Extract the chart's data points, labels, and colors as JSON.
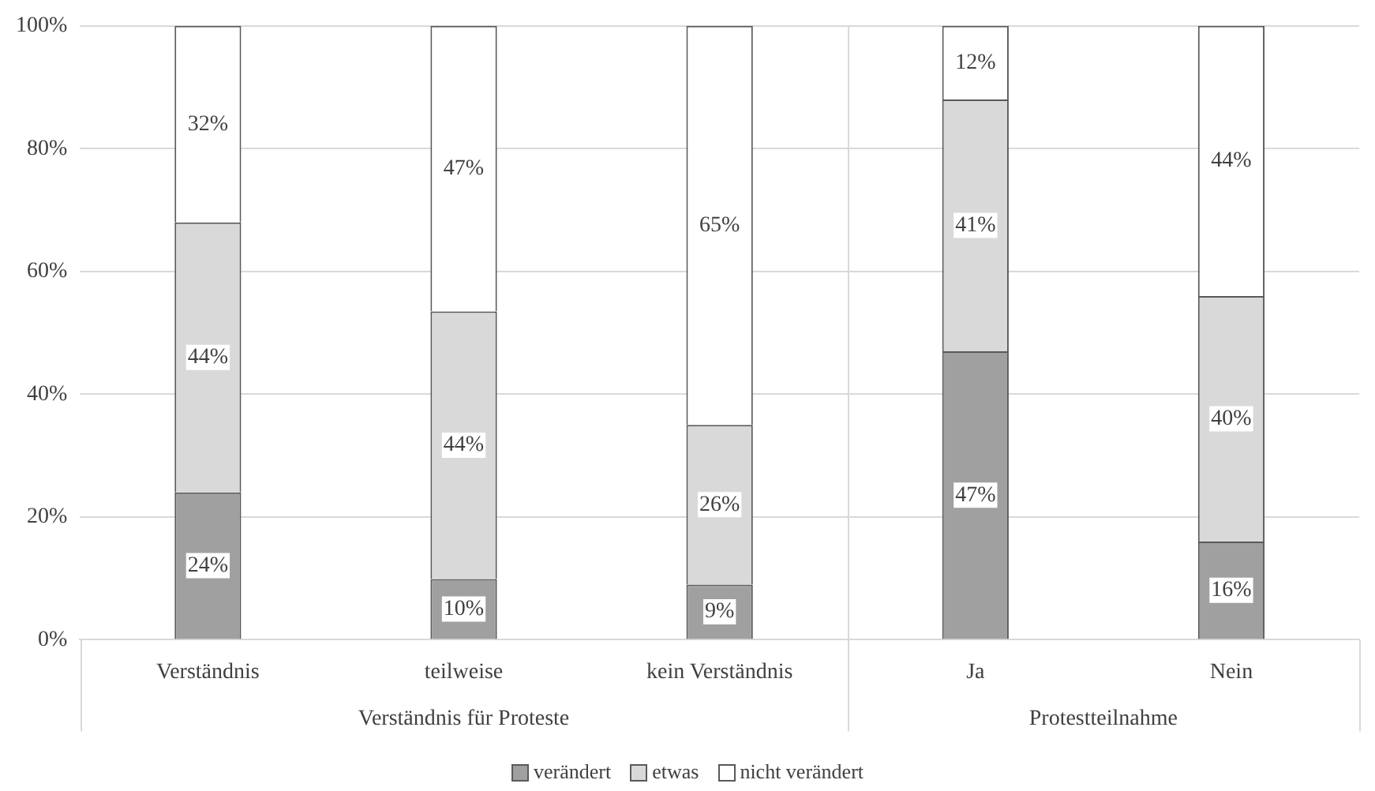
{
  "chart_data": {
    "type": "bar",
    "stacked": true,
    "categories": [
      "Verständnis",
      "teilweise",
      "kein Verständnis",
      "Ja",
      "Nein"
    ],
    "series": [
      {
        "name": "verändert",
        "color": "#a0a0a0",
        "values": [
          24,
          9.9,
          9,
          47,
          16
        ],
        "value_labels": [
          "24%",
          "10%",
          "9%",
          "47%",
          "16%"
        ]
      },
      {
        "name": "etwas",
        "color": "#d9d9d9",
        "values": [
          44,
          43.6,
          26,
          41,
          40
        ],
        "value_labels": [
          "44%",
          "44%",
          "26%",
          "41%",
          "40%"
        ]
      },
      {
        "name": "nicht verändert",
        "color": "#ffffff",
        "values": [
          32,
          46.5,
          65,
          12,
          44
        ],
        "value_labels": [
          "32%",
          "47%",
          "65%",
          "12%",
          "44%"
        ]
      }
    ],
    "ylim": [
      0,
      100
    ],
    "yticks": [
      {
        "value": 0,
        "label": "0%"
      },
      {
        "value": 20,
        "label": "20%"
      },
      {
        "value": 40,
        "label": "40%"
      },
      {
        "value": 60,
        "label": "60%"
      },
      {
        "value": 80,
        "label": "80%"
      },
      {
        "value": 100,
        "label": "100%"
      }
    ],
    "grid": "y",
    "legend": "bottom",
    "annotations": [
      "Verständnis für Proteste",
      "Protestteilnahme"
    ]
  }
}
